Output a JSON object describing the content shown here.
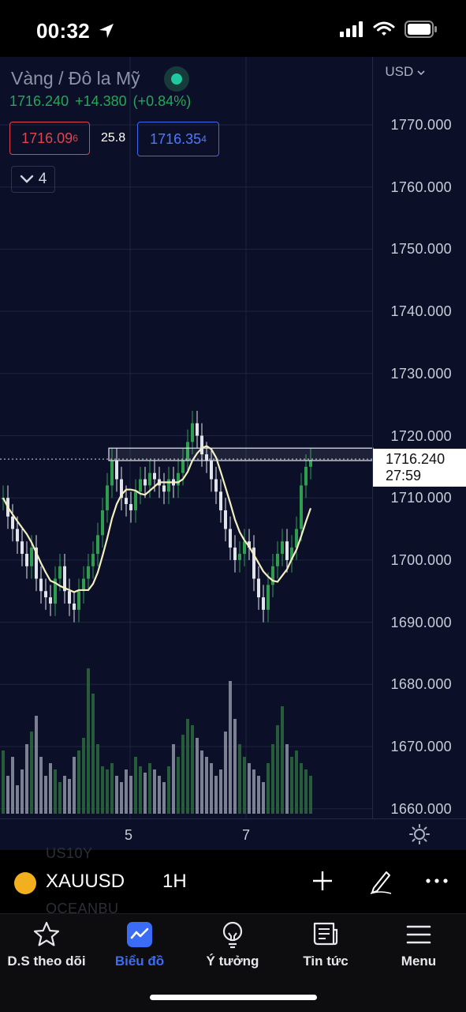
{
  "status_bar": {
    "time": "00:32"
  },
  "symbol": {
    "name": "Vàng / Đô la Mỹ",
    "price": "1716.240",
    "change": "+14.380",
    "change_pct": "(+0.84%)",
    "bid": "1716.09",
    "bid_pip": "6",
    "spread": "25.8",
    "ask": "1716.35",
    "ask_pip": "4",
    "indicator_count": "4"
  },
  "chart": {
    "currency": "USD",
    "price_axis": [
      "1770.000",
      "1760.000",
      "1750.000",
      "1740.000",
      "1730.000",
      "1720.000",
      "1710.000",
      "1700.000",
      "1690.000",
      "1680.000",
      "1670.000",
      "1660.000"
    ],
    "last_price": "1716.240",
    "countdown": "27:59",
    "time_axis": [
      "5",
      "7"
    ],
    "colors": {
      "up": "#2e9d4f",
      "down": "#e0e3ea",
      "ma": "#f3efc0",
      "background": "#0b1028"
    }
  },
  "toolbar": {
    "ghost_top": "US10Y",
    "ghost_bottom": "OCEANBU",
    "symbol": "XAUUSD",
    "interval": "1H"
  },
  "nav": [
    {
      "label": "D.S theo dõi",
      "icon": "star-icon"
    },
    {
      "label": "Biểu đồ",
      "icon": "chart-icon"
    },
    {
      "label": "Ý tưởng",
      "icon": "lightbulb-icon"
    },
    {
      "label": "Tin tức",
      "icon": "news-icon"
    },
    {
      "label": "Menu",
      "icon": "menu-icon"
    }
  ]
}
